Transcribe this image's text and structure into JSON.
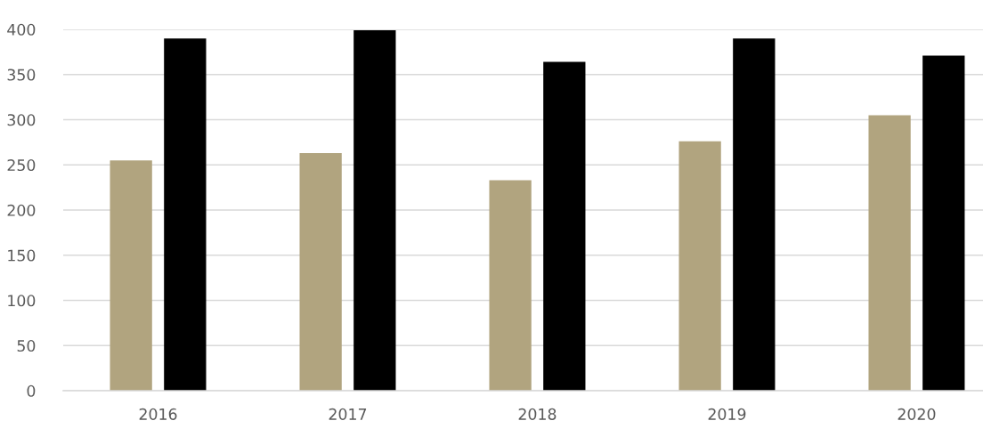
{
  "chart_data": {
    "type": "bar",
    "categories": [
      "2016",
      "2017",
      "2018",
      "2019",
      "2020"
    ],
    "series": [
      {
        "color": "#b1a47f",
        "values": [
          255,
          263,
          233,
          276,
          305
        ]
      },
      {
        "color": "#000000",
        "values": [
          390,
          399,
          364,
          390,
          371
        ]
      }
    ],
    "ylim": [
      0,
      400
    ],
    "yticks": [
      0,
      50,
      100,
      150,
      200,
      250,
      300,
      350,
      400
    ],
    "grid": "y"
  }
}
